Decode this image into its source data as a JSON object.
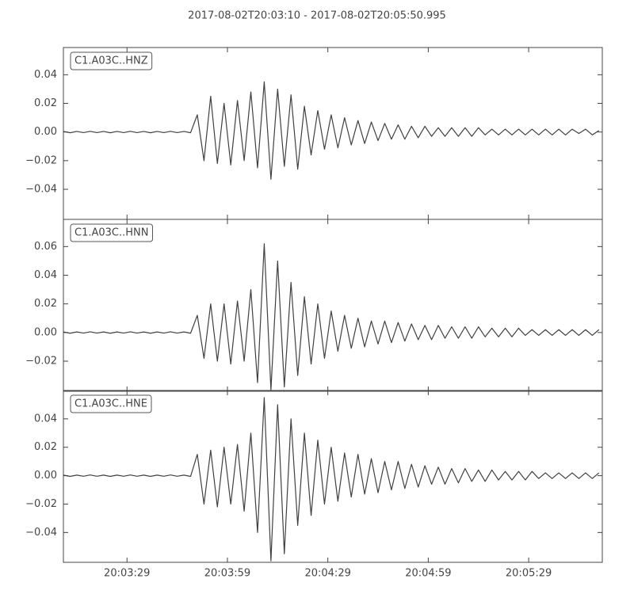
{
  "chart_data": [
    {
      "type": "line",
      "title": "2017-08-02T20:03:10  -  2017-08-02T20:05:50.995",
      "xlim": [
        "20:03:10",
        "20:05:50.995"
      ],
      "x": [
        "20:03:10",
        "20:03:12",
        "20:03:14",
        "20:03:16",
        "20:03:18",
        "20:03:20",
        "20:03:22",
        "20:03:24",
        "20:03:26",
        "20:03:28",
        "20:03:30",
        "20:03:32",
        "20:03:34",
        "20:03:36",
        "20:03:38",
        "20:03:40",
        "20:03:42",
        "20:03:44",
        "20:03:46",
        "20:03:48",
        "20:03:50",
        "20:03:52",
        "20:03:54",
        "20:03:56",
        "20:03:58",
        "20:04:00",
        "20:04:02",
        "20:04:04",
        "20:04:06",
        "20:04:08",
        "20:04:10",
        "20:04:12",
        "20:04:14",
        "20:04:16",
        "20:04:18",
        "20:04:20",
        "20:04:22",
        "20:04:24",
        "20:04:26",
        "20:04:28",
        "20:04:30",
        "20:04:32",
        "20:04:34",
        "20:04:36",
        "20:04:38",
        "20:04:40",
        "20:04:42",
        "20:04:44",
        "20:04:46",
        "20:04:48",
        "20:04:50",
        "20:04:52",
        "20:04:54",
        "20:04:56",
        "20:04:58",
        "20:05:00",
        "20:05:02",
        "20:05:04",
        "20:05:06",
        "20:05:08",
        "20:05:10",
        "20:05:12",
        "20:05:14",
        "20:05:16",
        "20:05:18",
        "20:05:20",
        "20:05:22",
        "20:05:24",
        "20:05:26",
        "20:05:28",
        "20:05:30",
        "20:05:32",
        "20:05:34",
        "20:05:36",
        "20:05:38",
        "20:05:40",
        "20:05:42",
        "20:05:44",
        "20:05:46",
        "20:05:48",
        "20:05:50"
      ],
      "series": [
        {
          "name": "C1.A03C..HNZ",
          "color": "#404040",
          "values": [
            0.0004,
            -0.0005,
            0.0004,
            -0.0004,
            0.0005,
            -0.0004,
            0.0004,
            -0.0005,
            0.0004,
            -0.0004,
            0.0005,
            -0.0004,
            0.0004,
            -0.0005,
            0.0004,
            -0.0004,
            0.0005,
            -0.0004,
            0.0004,
            -0.0005,
            0.012,
            -0.02,
            0.025,
            -0.022,
            0.02,
            -0.023,
            0.022,
            -0.02,
            0.028,
            -0.025,
            0.035,
            -0.033,
            0.03,
            -0.024,
            0.026,
            -0.026,
            0.018,
            -0.016,
            0.015,
            -0.012,
            0.012,
            -0.011,
            0.01,
            -0.009,
            0.008,
            -0.008,
            0.007,
            -0.006,
            0.006,
            -0.005,
            0.005,
            -0.005,
            0.004,
            -0.004,
            0.004,
            -0.003,
            0.003,
            -0.003,
            0.003,
            -0.003,
            0.003,
            -0.003,
            0.003,
            -0.002,
            0.002,
            -0.002,
            0.002,
            -0.002,
            0.002,
            -0.002,
            0.002,
            -0.002,
            0.002,
            -0.002,
            0.002,
            -0.002,
            0.002,
            -0.001,
            0.002,
            -0.002,
            0.001
          ]
        }
      ],
      "ylim": [
        -0.061,
        0.059
      ],
      "yticks": [
        0.04,
        0.02,
        {
          "value": 0,
          "label": "0.00"
        },
        {
          "value": -0.02,
          "label": "−0.02"
        },
        {
          "value": -0.04,
          "label": "−0.04"
        }
      ]
    },
    {
      "type": "line",
      "xlim": [
        "20:03:10",
        "20:05:50.995"
      ],
      "x": [
        "20:03:10",
        "20:03:12",
        "20:03:14",
        "20:03:16",
        "20:03:18",
        "20:03:20",
        "20:03:22",
        "20:03:24",
        "20:03:26",
        "20:03:28",
        "20:03:30",
        "20:03:32",
        "20:03:34",
        "20:03:36",
        "20:03:38",
        "20:03:40",
        "20:03:42",
        "20:03:44",
        "20:03:46",
        "20:03:48",
        "20:03:50",
        "20:03:52",
        "20:03:54",
        "20:03:56",
        "20:03:58",
        "20:04:00",
        "20:04:02",
        "20:04:04",
        "20:04:06",
        "20:04:08",
        "20:04:10",
        "20:04:12",
        "20:04:14",
        "20:04:16",
        "20:04:18",
        "20:04:20",
        "20:04:22",
        "20:04:24",
        "20:04:26",
        "20:04:28",
        "20:04:30",
        "20:04:32",
        "20:04:34",
        "20:04:36",
        "20:04:38",
        "20:04:40",
        "20:04:42",
        "20:04:44",
        "20:04:46",
        "20:04:48",
        "20:04:50",
        "20:04:52",
        "20:04:54",
        "20:04:56",
        "20:04:58",
        "20:05:00",
        "20:05:02",
        "20:05:04",
        "20:05:06",
        "20:05:08",
        "20:05:10",
        "20:05:12",
        "20:05:14",
        "20:05:16",
        "20:05:18",
        "20:05:20",
        "20:05:22",
        "20:05:24",
        "20:05:26",
        "20:05:28",
        "20:05:30",
        "20:05:32",
        "20:05:34",
        "20:05:36",
        "20:05:38",
        "20:05:40",
        "20:05:42",
        "20:05:44",
        "20:05:46",
        "20:05:48",
        "20:05:50"
      ],
      "series": [
        {
          "name": "C1.A03C..HNN",
          "color": "#404040",
          "values": [
            0.0004,
            -0.0005,
            0.0004,
            -0.0004,
            0.0005,
            -0.0004,
            0.0004,
            -0.0005,
            0.0004,
            -0.0004,
            0.0005,
            -0.0004,
            0.0004,
            -0.0005,
            0.0004,
            -0.0004,
            0.0005,
            -0.0004,
            0.0004,
            -0.0005,
            0.012,
            -0.018,
            0.02,
            -0.02,
            0.02,
            -0.022,
            0.022,
            -0.02,
            0.03,
            -0.035,
            0.062,
            -0.04,
            0.05,
            -0.038,
            0.035,
            -0.03,
            0.025,
            -0.022,
            0.02,
            -0.018,
            0.015,
            -0.013,
            0.012,
            -0.011,
            0.01,
            -0.01,
            0.008,
            -0.008,
            0.008,
            -0.007,
            0.007,
            -0.006,
            0.006,
            -0.005,
            0.005,
            -0.005,
            0.005,
            -0.004,
            0.004,
            -0.004,
            0.004,
            -0.004,
            0.004,
            -0.003,
            0.003,
            -0.003,
            0.003,
            -0.003,
            0.003,
            -0.002,
            0.002,
            -0.002,
            0.002,
            -0.002,
            0.002,
            -0.002,
            0.002,
            -0.002,
            0.002,
            -0.002,
            0.002
          ]
        }
      ],
      "ylim": [
        -0.041,
        0.079
      ],
      "yticks": [
        0.06,
        0.04,
        0.02,
        {
          "value": 0,
          "label": "0.00"
        },
        {
          "value": -0.02,
          "label": "−0.02"
        }
      ]
    },
    {
      "type": "line",
      "xlim": [
        "20:03:10",
        "20:05:50.995"
      ],
      "x": [
        "20:03:10",
        "20:03:12",
        "20:03:14",
        "20:03:16",
        "20:03:18",
        "20:03:20",
        "20:03:22",
        "20:03:24",
        "20:03:26",
        "20:03:28",
        "20:03:30",
        "20:03:32",
        "20:03:34",
        "20:03:36",
        "20:03:38",
        "20:03:40",
        "20:03:42",
        "20:03:44",
        "20:03:46",
        "20:03:48",
        "20:03:50",
        "20:03:52",
        "20:03:54",
        "20:03:56",
        "20:03:58",
        "20:04:00",
        "20:04:02",
        "20:04:04",
        "20:04:06",
        "20:04:08",
        "20:04:10",
        "20:04:12",
        "20:04:14",
        "20:04:16",
        "20:04:18",
        "20:04:20",
        "20:04:22",
        "20:04:24",
        "20:04:26",
        "20:04:28",
        "20:04:30",
        "20:04:32",
        "20:04:34",
        "20:04:36",
        "20:04:38",
        "20:04:40",
        "20:04:42",
        "20:04:44",
        "20:04:46",
        "20:04:48",
        "20:04:50",
        "20:04:52",
        "20:04:54",
        "20:04:56",
        "20:04:58",
        "20:05:00",
        "20:05:02",
        "20:05:04",
        "20:05:06",
        "20:05:08",
        "20:05:10",
        "20:05:12",
        "20:05:14",
        "20:05:16",
        "20:05:18",
        "20:05:20",
        "20:05:22",
        "20:05:24",
        "20:05:26",
        "20:05:28",
        "20:05:30",
        "20:05:32",
        "20:05:34",
        "20:05:36",
        "20:05:38",
        "20:05:40",
        "20:05:42",
        "20:05:44",
        "20:05:46",
        "20:05:48",
        "20:05:50"
      ],
      "series": [
        {
          "name": "C1.A03C..HNE",
          "color": "#404040",
          "values": [
            0.0004,
            -0.0005,
            0.0004,
            -0.0004,
            0.0005,
            -0.0004,
            0.0004,
            -0.0005,
            0.0004,
            -0.0004,
            0.0005,
            -0.0004,
            0.0004,
            -0.0005,
            0.0004,
            -0.0004,
            0.0005,
            -0.0004,
            0.0004,
            -0.0005,
            0.015,
            -0.02,
            0.018,
            -0.022,
            0.02,
            -0.02,
            0.022,
            -0.025,
            0.03,
            -0.04,
            0.055,
            -0.06,
            0.05,
            -0.055,
            0.04,
            -0.035,
            0.03,
            -0.028,
            0.025,
            -0.02,
            0.02,
            -0.018,
            0.016,
            -0.015,
            0.015,
            -0.013,
            0.012,
            -0.012,
            0.01,
            -0.01,
            0.01,
            -0.009,
            0.008,
            -0.008,
            0.007,
            -0.006,
            0.006,
            -0.006,
            0.005,
            -0.005,
            0.005,
            -0.004,
            0.004,
            -0.004,
            0.004,
            -0.003,
            0.003,
            -0.003,
            0.003,
            -0.003,
            0.003,
            -0.002,
            0.002,
            -0.002,
            0.002,
            -0.002,
            0.002,
            -0.002,
            0.002,
            -0.002,
            0.002
          ]
        }
      ],
      "ylim": [
        -0.061,
        0.06
      ],
      "yticks": [
        0.04,
        0.02,
        {
          "value": 0,
          "label": "0.00"
        },
        {
          "value": -0.02,
          "label": "−0.02"
        },
        {
          "value": -0.04,
          "label": "−0.04"
        }
      ],
      "xticks": [
        "20:03:29",
        "20:03:59",
        "20:04:29",
        "20:04:59",
        "20:05:29"
      ]
    }
  ]
}
